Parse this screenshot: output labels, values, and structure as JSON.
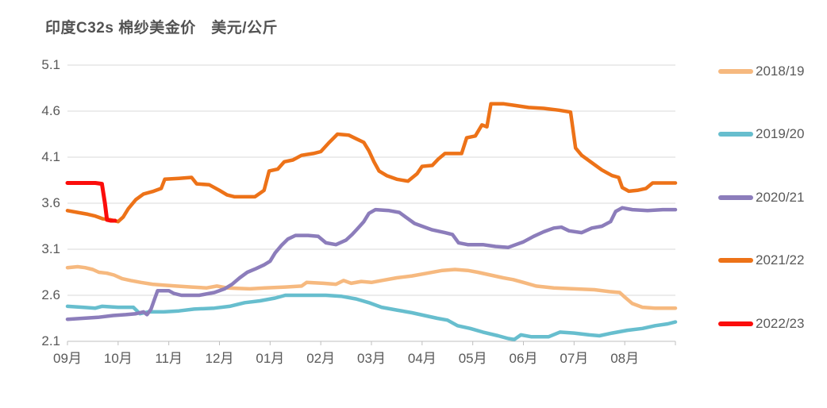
{
  "chart_data": {
    "type": "line",
    "title": "印度C32s 棉纱美金价　美元/公斤",
    "unit": "美元/公斤",
    "x_tick_labels": [
      "09月",
      "10月",
      "11月",
      "12月",
      "01月",
      "02月",
      "03月",
      "04月",
      "05月",
      "06月",
      "07月",
      "08月"
    ],
    "y_tick_labels": [
      "5.1",
      "4.6",
      "4.1",
      "3.6",
      "3.1",
      "2.6",
      "2.1"
    ],
    "y_ticks": [
      5.1,
      4.6,
      4.1,
      3.6,
      3.1,
      2.6,
      2.1
    ],
    "ylim": [
      2.1,
      5.1
    ],
    "xlim": [
      0,
      12
    ],
    "grid": "horizontal",
    "legend_position": "right",
    "colors": {
      "grid": "#d9d9d9",
      "axis": "#bfbfbf",
      "text": "#595959",
      "title": "#525252"
    },
    "series": [
      {
        "name": "2018/19",
        "color": "#F6B97F",
        "points": [
          [
            0,
            2.9
          ],
          [
            0.2,
            2.91
          ],
          [
            0.35,
            2.9
          ],
          [
            0.5,
            2.88
          ],
          [
            0.62,
            2.85
          ],
          [
            0.78,
            2.84
          ],
          [
            0.92,
            2.82
          ],
          [
            1.08,
            2.78
          ],
          [
            1.25,
            2.76
          ],
          [
            1.45,
            2.74
          ],
          [
            1.68,
            2.72
          ],
          [
            1.9,
            2.71
          ],
          [
            2.15,
            2.7
          ],
          [
            2.45,
            2.69
          ],
          [
            2.75,
            2.68
          ],
          [
            2.95,
            2.7
          ],
          [
            3.15,
            2.68
          ],
          [
            3.6,
            2.67
          ],
          [
            3.9,
            2.68
          ],
          [
            4.3,
            2.69
          ],
          [
            4.62,
            2.7
          ],
          [
            4.72,
            2.74
          ],
          [
            5.05,
            2.73
          ],
          [
            5.3,
            2.72
          ],
          [
            5.45,
            2.76
          ],
          [
            5.6,
            2.73
          ],
          [
            5.8,
            2.75
          ],
          [
            6.0,
            2.74
          ],
          [
            6.2,
            2.76
          ],
          [
            6.5,
            2.79
          ],
          [
            6.8,
            2.81
          ],
          [
            7.1,
            2.84
          ],
          [
            7.4,
            2.87
          ],
          [
            7.65,
            2.88
          ],
          [
            7.9,
            2.87
          ],
          [
            8.1,
            2.85
          ],
          [
            8.35,
            2.82
          ],
          [
            8.6,
            2.79
          ],
          [
            8.8,
            2.77
          ],
          [
            9.0,
            2.74
          ],
          [
            9.25,
            2.7
          ],
          [
            9.6,
            2.68
          ],
          [
            10.0,
            2.67
          ],
          [
            10.4,
            2.66
          ],
          [
            10.7,
            2.64
          ],
          [
            10.9,
            2.63
          ],
          [
            11.0,
            2.58
          ],
          [
            11.15,
            2.51
          ],
          [
            11.35,
            2.47
          ],
          [
            11.6,
            2.46
          ],
          [
            12,
            2.46
          ]
        ]
      },
      {
        "name": "2019/20",
        "color": "#67BECE",
        "points": [
          [
            0,
            2.48
          ],
          [
            0.3,
            2.47
          ],
          [
            0.55,
            2.46
          ],
          [
            0.68,
            2.48
          ],
          [
            1.0,
            2.47
          ],
          [
            1.3,
            2.47
          ],
          [
            1.43,
            2.4
          ],
          [
            1.6,
            2.42
          ],
          [
            1.9,
            2.42
          ],
          [
            2.2,
            2.43
          ],
          [
            2.5,
            2.45
          ],
          [
            2.9,
            2.46
          ],
          [
            3.2,
            2.48
          ],
          [
            3.5,
            2.52
          ],
          [
            3.8,
            2.54
          ],
          [
            4.1,
            2.57
          ],
          [
            4.3,
            2.6
          ],
          [
            5.1,
            2.6
          ],
          [
            5.4,
            2.59
          ],
          [
            5.7,
            2.56
          ],
          [
            5.95,
            2.52
          ],
          [
            6.2,
            2.47
          ],
          [
            6.5,
            2.44
          ],
          [
            6.8,
            2.41
          ],
          [
            7.05,
            2.38
          ],
          [
            7.3,
            2.35
          ],
          [
            7.5,
            2.33
          ],
          [
            7.7,
            2.27
          ],
          [
            7.95,
            2.24
          ],
          [
            8.2,
            2.2
          ],
          [
            8.5,
            2.16
          ],
          [
            8.7,
            2.13
          ],
          [
            8.82,
            2.12
          ],
          [
            8.95,
            2.17
          ],
          [
            9.15,
            2.15
          ],
          [
            9.5,
            2.15
          ],
          [
            9.72,
            2.2
          ],
          [
            10.0,
            2.19
          ],
          [
            10.3,
            2.17
          ],
          [
            10.5,
            2.16
          ],
          [
            10.75,
            2.19
          ],
          [
            11.05,
            2.22
          ],
          [
            11.35,
            2.24
          ],
          [
            11.6,
            2.27
          ],
          [
            11.85,
            2.29
          ],
          [
            12,
            2.31
          ]
        ]
      },
      {
        "name": "2020/21",
        "color": "#8C7DBB",
        "points": [
          [
            0,
            2.34
          ],
          [
            0.3,
            2.35
          ],
          [
            0.6,
            2.36
          ],
          [
            0.9,
            2.38
          ],
          [
            1.15,
            2.39
          ],
          [
            1.35,
            2.4
          ],
          [
            1.5,
            2.42
          ],
          [
            1.57,
            2.39
          ],
          [
            1.65,
            2.45
          ],
          [
            1.72,
            2.56
          ],
          [
            1.78,
            2.65
          ],
          [
            2.0,
            2.65
          ],
          [
            2.1,
            2.62
          ],
          [
            2.25,
            2.6
          ],
          [
            2.6,
            2.6
          ],
          [
            2.9,
            2.63
          ],
          [
            3.1,
            2.67
          ],
          [
            3.25,
            2.72
          ],
          [
            3.4,
            2.79
          ],
          [
            3.55,
            2.85
          ],
          [
            3.72,
            2.89
          ],
          [
            3.88,
            2.93
          ],
          [
            4.0,
            2.97
          ],
          [
            4.1,
            3.06
          ],
          [
            4.22,
            3.14
          ],
          [
            4.35,
            3.21
          ],
          [
            4.5,
            3.25
          ],
          [
            4.75,
            3.25
          ],
          [
            4.95,
            3.24
          ],
          [
            5.1,
            3.17
          ],
          [
            5.3,
            3.15
          ],
          [
            5.5,
            3.2
          ],
          [
            5.62,
            3.26
          ],
          [
            5.72,
            3.32
          ],
          [
            5.85,
            3.4
          ],
          [
            5.95,
            3.49
          ],
          [
            6.08,
            3.53
          ],
          [
            6.35,
            3.52
          ],
          [
            6.55,
            3.5
          ],
          [
            6.7,
            3.44
          ],
          [
            6.85,
            3.38
          ],
          [
            7.0,
            3.35
          ],
          [
            7.2,
            3.31
          ],
          [
            7.45,
            3.28
          ],
          [
            7.6,
            3.26
          ],
          [
            7.72,
            3.17
          ],
          [
            7.9,
            3.15
          ],
          [
            8.2,
            3.15
          ],
          [
            8.45,
            3.13
          ],
          [
            8.7,
            3.12
          ],
          [
            8.85,
            3.15
          ],
          [
            9.0,
            3.18
          ],
          [
            9.2,
            3.24
          ],
          [
            9.4,
            3.29
          ],
          [
            9.6,
            3.33
          ],
          [
            9.75,
            3.34
          ],
          [
            9.9,
            3.3
          ],
          [
            10.15,
            3.28
          ],
          [
            10.35,
            3.33
          ],
          [
            10.55,
            3.35
          ],
          [
            10.72,
            3.4
          ],
          [
            10.82,
            3.51
          ],
          [
            10.95,
            3.55
          ],
          [
            11.15,
            3.53
          ],
          [
            11.45,
            3.52
          ],
          [
            11.75,
            3.53
          ],
          [
            12,
            3.53
          ]
        ]
      },
      {
        "name": "2021/22",
        "color": "#ED7218",
        "points": [
          [
            0,
            3.52
          ],
          [
            0.2,
            3.5
          ],
          [
            0.4,
            3.48
          ],
          [
            0.55,
            3.46
          ],
          [
            0.7,
            3.43
          ],
          [
            0.85,
            3.42
          ],
          [
            1.0,
            3.4
          ],
          [
            1.1,
            3.45
          ],
          [
            1.2,
            3.54
          ],
          [
            1.35,
            3.64
          ],
          [
            1.5,
            3.7
          ],
          [
            1.7,
            3.73
          ],
          [
            1.85,
            3.76
          ],
          [
            1.92,
            3.86
          ],
          [
            2.2,
            3.87
          ],
          [
            2.45,
            3.88
          ],
          [
            2.55,
            3.81
          ],
          [
            2.8,
            3.8
          ],
          [
            3.0,
            3.74
          ],
          [
            3.15,
            3.69
          ],
          [
            3.3,
            3.67
          ],
          [
            3.7,
            3.67
          ],
          [
            3.88,
            3.74
          ],
          [
            3.98,
            3.95
          ],
          [
            4.15,
            3.97
          ],
          [
            4.28,
            4.05
          ],
          [
            4.45,
            4.07
          ],
          [
            4.62,
            4.12
          ],
          [
            4.85,
            4.14
          ],
          [
            5.0,
            4.16
          ],
          [
            5.15,
            4.25
          ],
          [
            5.33,
            4.35
          ],
          [
            5.55,
            4.34
          ],
          [
            5.7,
            4.3
          ],
          [
            5.85,
            4.26
          ],
          [
            5.95,
            4.17
          ],
          [
            6.05,
            4.05
          ],
          [
            6.15,
            3.95
          ],
          [
            6.3,
            3.9
          ],
          [
            6.5,
            3.86
          ],
          [
            6.72,
            3.84
          ],
          [
            6.9,
            3.92
          ],
          [
            7.0,
            4.0
          ],
          [
            7.2,
            4.01
          ],
          [
            7.32,
            4.08
          ],
          [
            7.45,
            4.14
          ],
          [
            7.78,
            4.14
          ],
          [
            7.88,
            4.31
          ],
          [
            8.05,
            4.33
          ],
          [
            8.18,
            4.45
          ],
          [
            8.28,
            4.43
          ],
          [
            8.36,
            4.68
          ],
          [
            8.6,
            4.68
          ],
          [
            8.85,
            4.66
          ],
          [
            9.1,
            4.64
          ],
          [
            9.4,
            4.63
          ],
          [
            9.7,
            4.61
          ],
          [
            9.93,
            4.59
          ],
          [
            10.03,
            4.2
          ],
          [
            10.15,
            4.12
          ],
          [
            10.35,
            4.04
          ],
          [
            10.55,
            3.96
          ],
          [
            10.75,
            3.9
          ],
          [
            10.88,
            3.88
          ],
          [
            10.95,
            3.77
          ],
          [
            11.08,
            3.73
          ],
          [
            11.25,
            3.74
          ],
          [
            11.42,
            3.76
          ],
          [
            11.55,
            3.82
          ],
          [
            12,
            3.82
          ]
        ]
      },
      {
        "name": "2022/23",
        "color": "#FB0D0B",
        "points": [
          [
            0,
            3.82
          ],
          [
            0.3,
            3.82
          ],
          [
            0.55,
            3.82
          ],
          [
            0.68,
            3.81
          ],
          [
            0.74,
            3.6
          ],
          [
            0.78,
            3.42
          ],
          [
            0.85,
            3.41
          ],
          [
            0.94,
            3.41
          ]
        ]
      }
    ]
  }
}
